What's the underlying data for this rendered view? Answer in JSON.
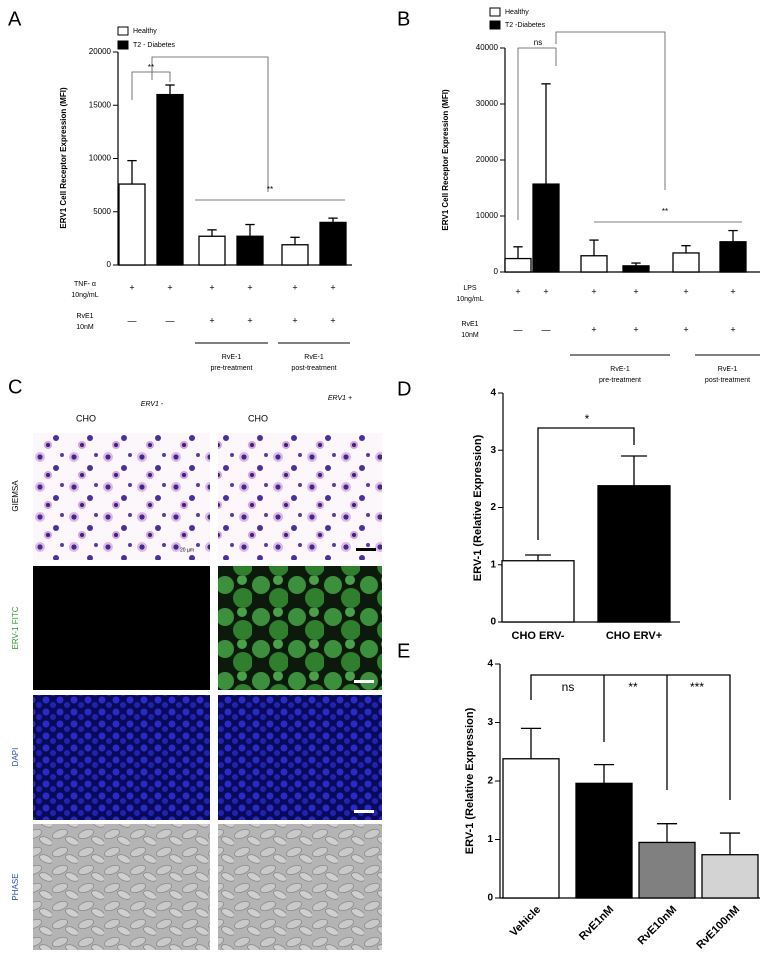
{
  "chart_data": [
    {
      "type": "bar",
      "panel": "A",
      "ylabel": "ERV1 Cell Receptor Expression (MFI)",
      "ylim": [
        0,
        20000
      ],
      "yticks": [
        0,
        5000,
        10000,
        15000,
        20000
      ],
      "values": [
        7600,
        16000,
        2700,
        2700,
        1900,
        4000
      ],
      "errors": [
        2200,
        900,
        600,
        1100,
        700,
        400
      ],
      "colors": [
        "#ffffff",
        "#000000",
        "#ffffff",
        "#000000",
        "#ffffff",
        "#000000"
      ],
      "legend": [
        {
          "name": "Healthy",
          "color": "#ffffff"
        },
        {
          "name": "T2 - Diabetes",
          "color": "#000000"
        }
      ],
      "rows": [
        {
          "label": [
            "TNF- α",
            "10ng/mL"
          ],
          "marks": [
            "+",
            "+",
            "+",
            "+",
            "+",
            "+"
          ]
        },
        {
          "label": [
            "RvE1",
            "10nM"
          ],
          "marks": [
            "—",
            "—",
            "+",
            "+",
            "+",
            "+"
          ]
        }
      ],
      "groups": [
        [
          "RvE-1",
          "pre-treatment"
        ],
        [
          "RvE-1",
          "post-treatment"
        ]
      ],
      "annotations": [
        "**",
        "**"
      ]
    },
    {
      "type": "bar",
      "panel": "B",
      "ylabel": "ERV1 Cell Receptor Expression (MFI)",
      "ylim": [
        0,
        40000
      ],
      "yticks": [
        0,
        10000,
        20000,
        30000,
        40000
      ],
      "values": [
        2400,
        15700,
        2900,
        1100,
        3400,
        5400
      ],
      "errors": [
        2100,
        17900,
        2800,
        500,
        1300,
        2000
      ],
      "colors": [
        "#ffffff",
        "#000000",
        "#ffffff",
        "#000000",
        "#ffffff",
        "#000000"
      ],
      "legend": [
        {
          "name": "Healthy",
          "color": "#ffffff"
        },
        {
          "name": "T2 -Diabetes",
          "color": "#000000"
        }
      ],
      "rows": [
        {
          "label": [
            "LPS",
            "10ng/mL"
          ],
          "marks": [
            "+",
            "+",
            "+",
            "+",
            "+",
            "+"
          ]
        },
        {
          "label": [
            "RvE1",
            "10nM"
          ],
          "marks": [
            "—",
            "—",
            "+",
            "+",
            "+",
            "+"
          ]
        }
      ],
      "groups": [
        [
          "RvE-1",
          "pre-treatment"
        ],
        [
          "RvE-1",
          "post-treatment"
        ]
      ],
      "annotations": [
        "ns",
        "**"
      ]
    },
    {
      "type": "bar",
      "panel": "D",
      "ylabel": "ERV-1 (Relative Expression)",
      "ylim": [
        0,
        4
      ],
      "yticks": [
        0,
        1,
        2,
        3,
        4
      ],
      "categories": [
        "CHO ERV-",
        "CHO ERV+"
      ],
      "values": [
        1.07,
        2.38
      ],
      "errors": [
        0.1,
        0.52
      ],
      "colors": [
        "#ffffff",
        "#000000"
      ],
      "annotations": [
        "*"
      ]
    },
    {
      "type": "bar",
      "panel": "E",
      "ylabel": "ERV-1 (Relative Expression)",
      "ylim": [
        0,
        4
      ],
      "yticks": [
        0,
        1,
        2,
        3,
        4
      ],
      "categories": [
        "Vehicle",
        "RvE1nM",
        "RvE10nM",
        "RvE100nM"
      ],
      "values": [
        2.38,
        1.96,
        0.95,
        0.74
      ],
      "errors": [
        0.52,
        0.32,
        0.32,
        0.37
      ],
      "colors": [
        "#ffffff",
        "#000000",
        "#808080",
        "#d3d3d3"
      ],
      "annotations": [
        "ns",
        "**",
        "***"
      ]
    }
  ],
  "panel_c": {
    "panel": "C",
    "columns": [
      {
        "marker": "ERV1 -",
        "cell": "CHO"
      },
      {
        "marker": "ERV1 +",
        "cell": "CHO"
      }
    ],
    "rows": [
      "GIEMSA",
      "ERV-1 FITC",
      "DAPI",
      "PHASE"
    ],
    "scale_bar": "20 µm"
  }
}
